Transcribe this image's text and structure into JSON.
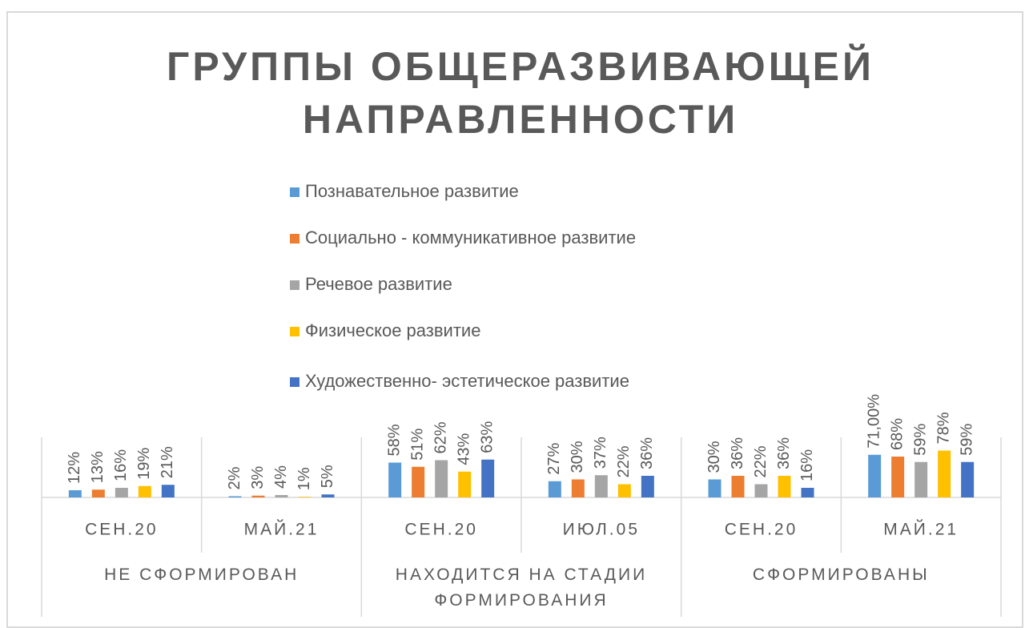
{
  "chart_data": {
    "type": "bar",
    "title": "ГРУППЫ ОБЩЕРАЗВИВАЮЩЕЙ НАПРАВЛЕННОСТИ",
    "categories": [
      "СЕН.20",
      "МАЙ.21",
      "СЕН.20",
      "ИЮЛ.05",
      "СЕН.20",
      "МАЙ.21"
    ],
    "groups": [
      "НЕ СФОРМИРОВАН",
      "НАХОДИТСЯ НА СТАДИИ ФОРМИРОВАНИЯ",
      "СФОРМИРОВАНЫ"
    ],
    "legend": "top",
    "series": [
      {
        "name": "Познавательное развитие",
        "color": "#5b9bd5",
        "values": [
          12,
          2,
          58,
          27,
          30,
          71
        ],
        "value_labels": [
          "12%",
          "2%",
          "58%",
          "27%",
          "30%",
          "71,00%"
        ]
      },
      {
        "name": "Социально - коммуникативное развитие",
        "color": "#ed7d31",
        "values": [
          13,
          3,
          51,
          30,
          36,
          68
        ],
        "value_labels": [
          "13%",
          "3%",
          "51%",
          "30%",
          "36%",
          "68%"
        ]
      },
      {
        "name": "Речевое развитие",
        "color": "#a5a5a5",
        "values": [
          16,
          4,
          62,
          37,
          22,
          59
        ],
        "value_labels": [
          "16%",
          "4%",
          "62%",
          "37%",
          "22%",
          "59%"
        ]
      },
      {
        "name": "Физическое развитие",
        "color": "#ffc000",
        "values": [
          19,
          1,
          43,
          22,
          36,
          78
        ],
        "value_labels": [
          "19%",
          "1%",
          "43%",
          "22%",
          "36%",
          "78%"
        ]
      },
      {
        "name": "Художественно- эстетическое развитие",
        "color": "#4472c4",
        "values": [
          21,
          5,
          63,
          36,
          16,
          59
        ],
        "value_labels": [
          "21%",
          "5%",
          "63%",
          "36%",
          "16%",
          "59%"
        ]
      }
    ]
  }
}
